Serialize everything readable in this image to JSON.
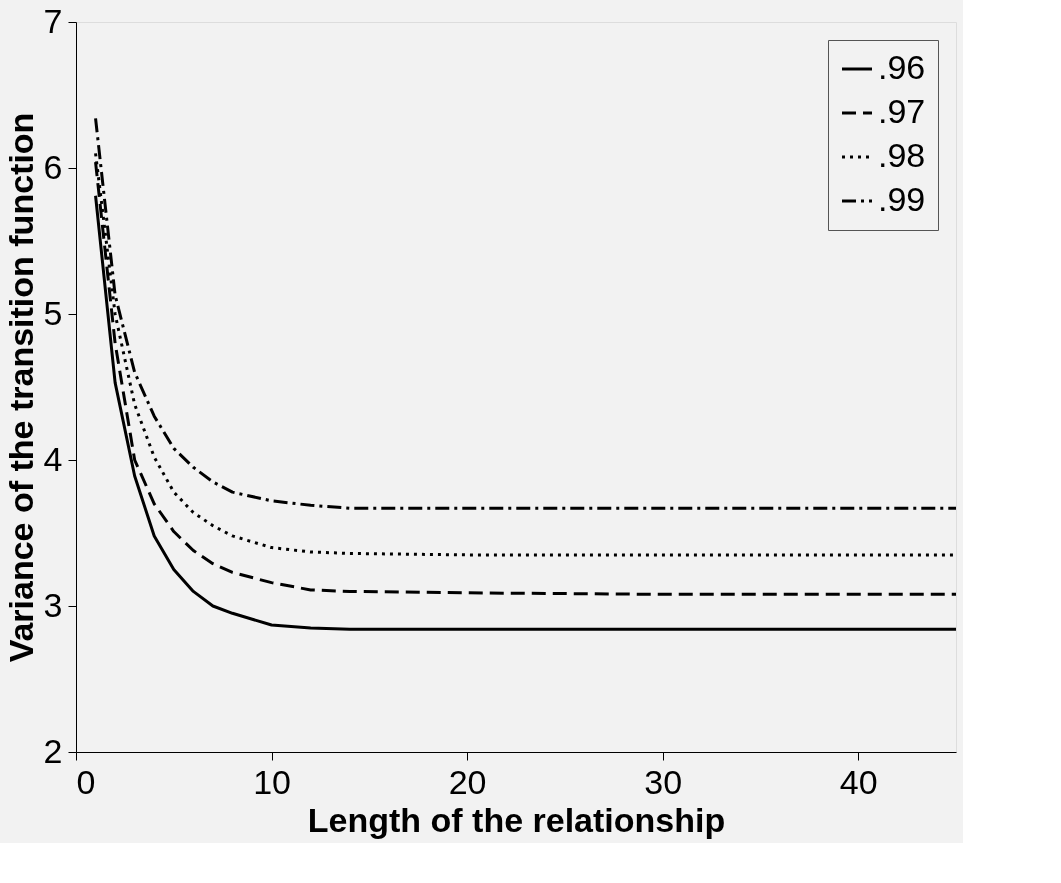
{
  "chart_data": {
    "type": "line",
    "xlabel": "Length of the relationship",
    "ylabel": "Variance of the transition function",
    "x": [
      1,
      2,
      3,
      4,
      5,
      6,
      7,
      8,
      10,
      12,
      14,
      20,
      30,
      45
    ],
    "series": [
      {
        "name": ".96",
        "color": "#000000",
        "line_style": "solid",
        "values": [
          5.81,
          4.53,
          3.89,
          3.48,
          3.25,
          3.1,
          3.0,
          2.95,
          2.87,
          2.85,
          2.84,
          2.84,
          2.84,
          2.84
        ]
      },
      {
        "name": ".97",
        "color": "#000000",
        "line_style": "dashed",
        "values": [
          6.04,
          4.8,
          4.0,
          3.7,
          3.51,
          3.38,
          3.29,
          3.23,
          3.16,
          3.11,
          3.1,
          3.09,
          3.08,
          3.08
        ]
      },
      {
        "name": ".98",
        "color": "#000000",
        "line_style": "dotted",
        "values": [
          6.1,
          5.0,
          4.38,
          4.02,
          3.78,
          3.64,
          3.55,
          3.48,
          3.4,
          3.37,
          3.36,
          3.35,
          3.35,
          3.35
        ]
      },
      {
        "name": ".99",
        "color": "#000000",
        "line_style": "dashdot",
        "values": [
          6.34,
          5.13,
          4.6,
          4.3,
          4.08,
          3.95,
          3.85,
          3.78,
          3.72,
          3.69,
          3.67,
          3.67,
          3.67,
          3.67
        ]
      }
    ],
    "xlim": [
      0,
      45
    ],
    "ylim": [
      2,
      7
    ],
    "xticks": [
      0,
      10,
      20,
      30,
      40
    ],
    "yticks": [
      2,
      3,
      4,
      5,
      6,
      7
    ],
    "grid": false,
    "legend": "top right",
    "marker": "none"
  }
}
